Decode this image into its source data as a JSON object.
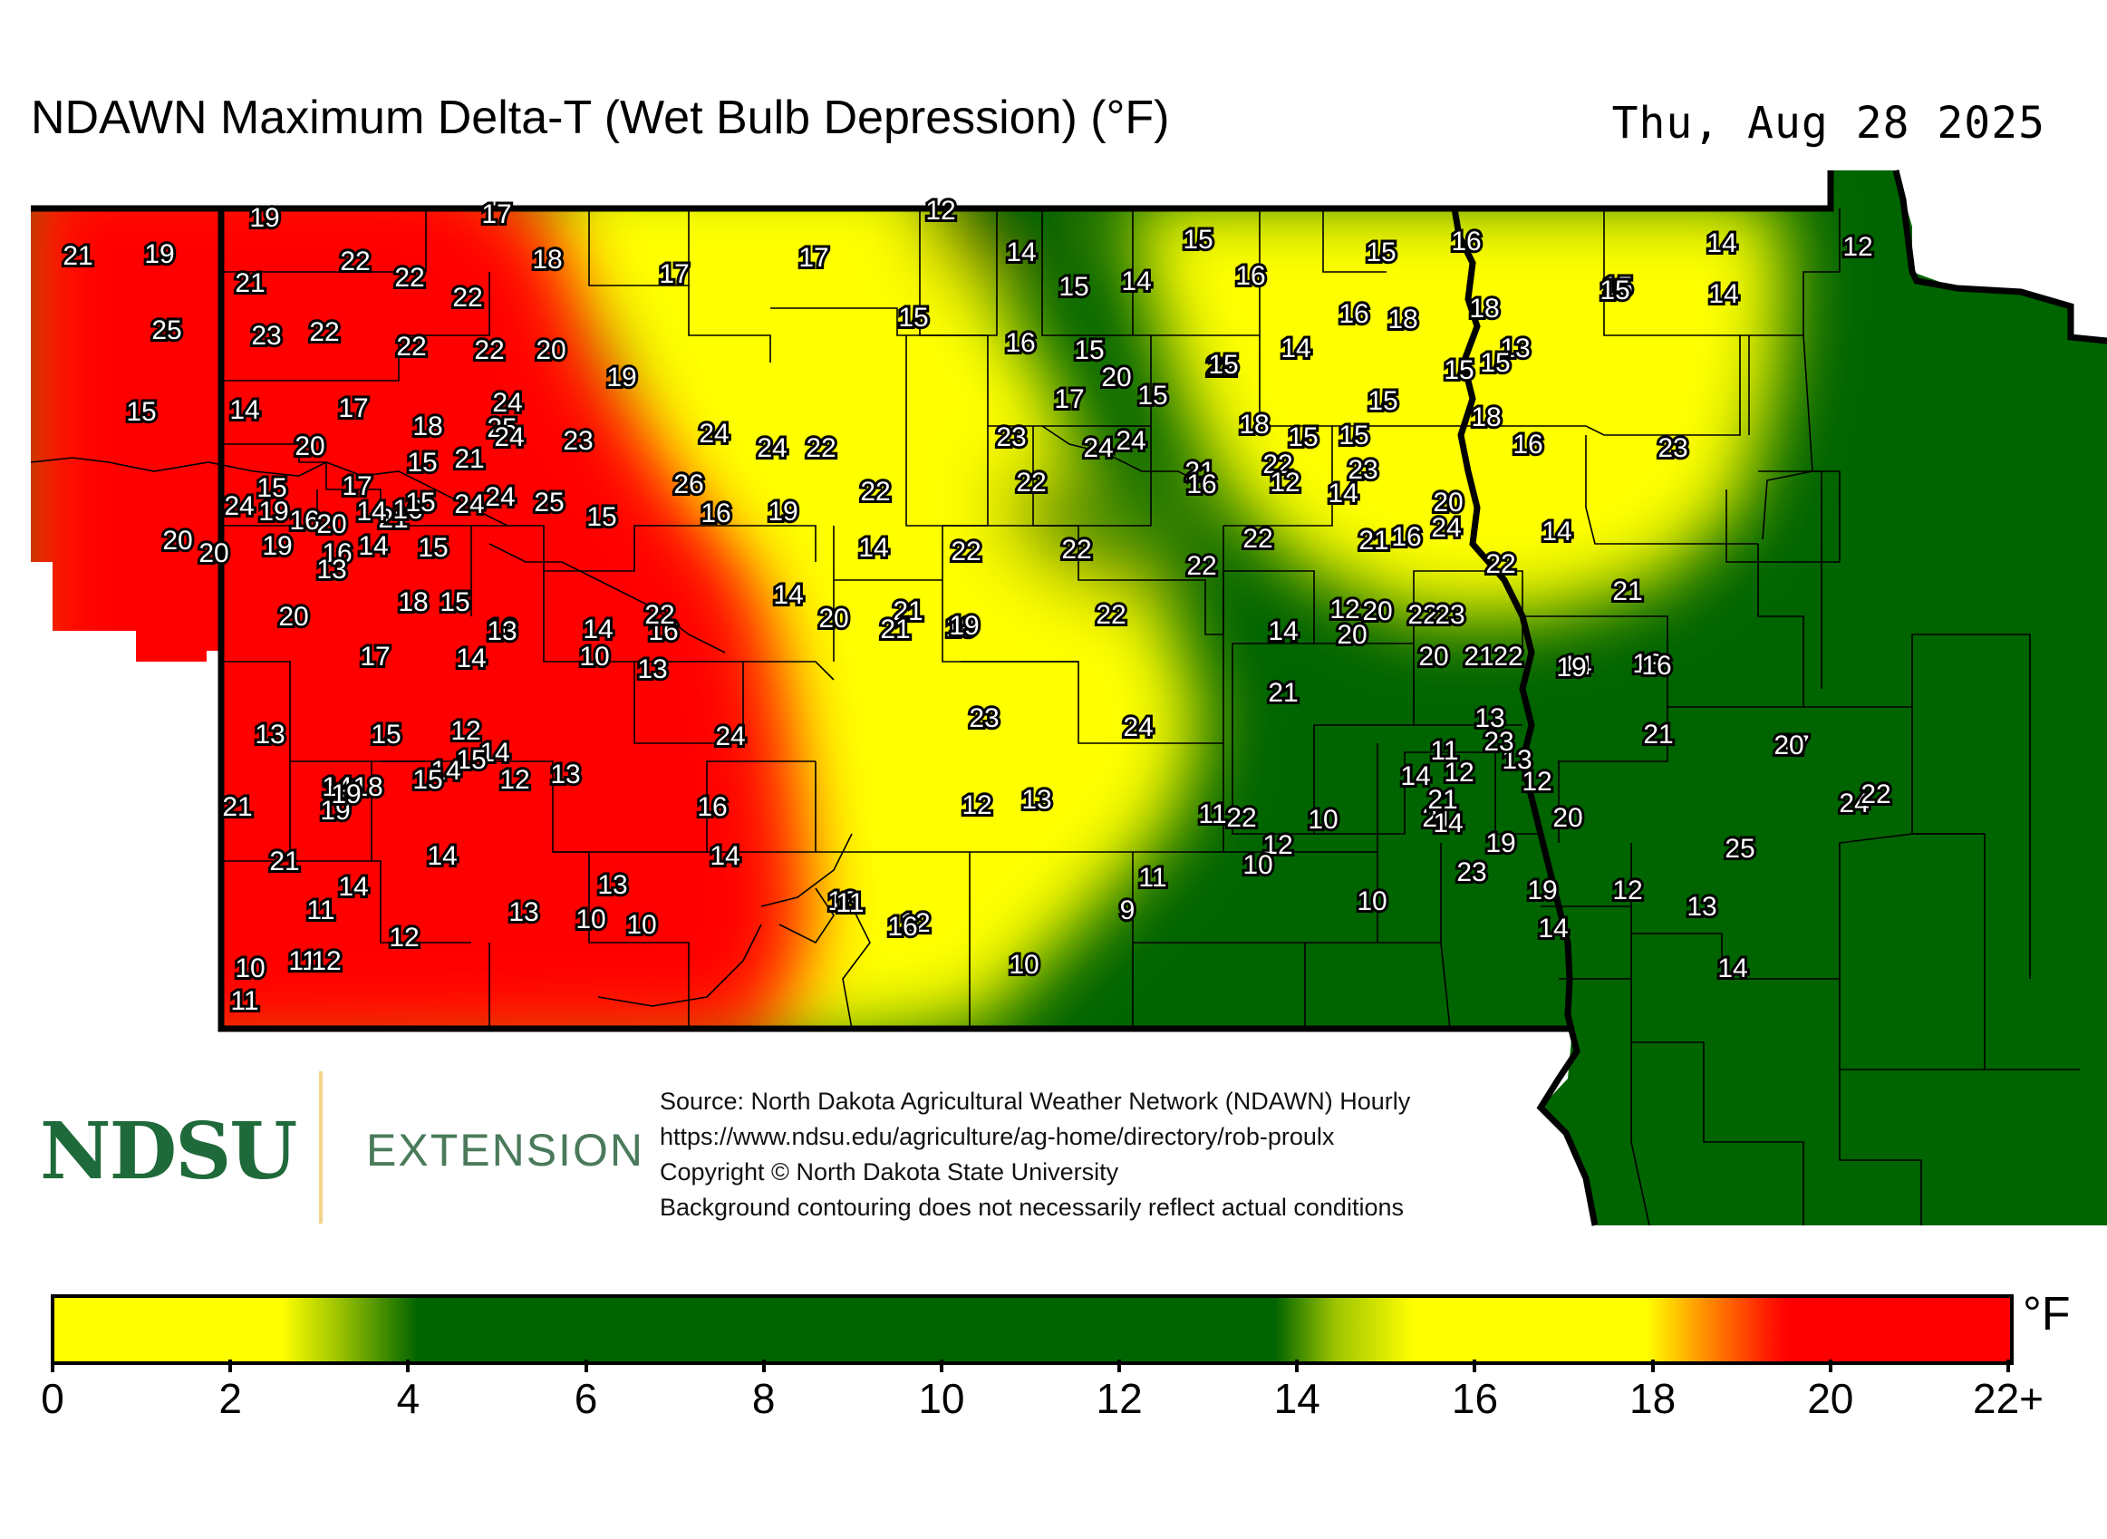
{
  "header": {
    "title": "NDAWN Maximum Delta-T (Wet Bulb Depression) (°F)",
    "date": "Thu, Aug 28 2025"
  },
  "logo": {
    "brand": "NDSU",
    "unit": "EXTENSION"
  },
  "source": {
    "line1": "Source: North Dakota Agricultural Weather Network (NDAWN) Hourly",
    "line2": "https://www.ndsu.edu/agriculture/ag-home/directory/rob-proulx",
    "line3": "Copyright © North Dakota State University",
    "line4": "Background contouring does not necessarily reflect actual conditions"
  },
  "legend": {
    "unit": "°F",
    "ticks": [
      "0",
      "2",
      "4",
      "6",
      "8",
      "10",
      "12",
      "14",
      "16",
      "18",
      "20",
      "22+"
    ],
    "colors": {
      "yellow": "#ffff00",
      "green": "#006400",
      "orange": "#ff8c00",
      "red": "#ff0000"
    }
  },
  "stations": [
    "21",
    "19",
    "19",
    "17",
    "12",
    "21",
    "22",
    "22",
    "22",
    "18",
    "17",
    "17",
    "14",
    "15",
    "15",
    "14",
    "16",
    "15",
    "16",
    "15",
    "14",
    "12",
    "25",
    "23",
    "22",
    "22",
    "22",
    "20",
    "15",
    "16",
    "15",
    "14",
    "16",
    "18",
    "18",
    "15",
    "14",
    "19",
    "20",
    "22",
    "15",
    "13",
    "15",
    "15",
    "14",
    "17",
    "18",
    "25",
    "24",
    "21",
    "23",
    "24",
    "24",
    "22",
    "17",
    "15",
    "18",
    "15",
    "15",
    "15",
    "18",
    "16",
    "23",
    "20",
    "15",
    "16",
    "17",
    "15",
    "21",
    "26",
    "24",
    "23",
    "24",
    "21",
    "22",
    "23",
    "24",
    "19",
    "20",
    "14",
    "16",
    "15",
    "24",
    "24",
    "25",
    "22",
    "24",
    "24",
    "20",
    "20",
    "19",
    "16",
    "14",
    "13",
    "15",
    "15",
    "16",
    "19",
    "14",
    "22",
    "22",
    "22",
    "22",
    "21",
    "16",
    "14",
    "15",
    "12",
    "16",
    "14",
    "22",
    "20",
    "20",
    "18",
    "15",
    "16",
    "14",
    "16",
    "22",
    "20",
    "21",
    "18",
    "22",
    "14",
    "12",
    "22",
    "22",
    "21",
    "17",
    "14",
    "13",
    "13",
    "14",
    "22",
    "21",
    "19",
    "20",
    "20",
    "23",
    "14",
    "13",
    "13",
    "14",
    "15",
    "12",
    "10",
    "24",
    "23",
    "24",
    "21",
    "20",
    "21",
    "19",
    "16",
    "17",
    "18",
    "16",
    "14",
    "15",
    "14",
    "14",
    "13",
    "12",
    "13",
    "12",
    "11",
    "23",
    "21",
    "20",
    "19",
    "21",
    "19",
    "15",
    "12",
    "16",
    "13",
    "12",
    "12",
    "11",
    "10",
    "22",
    "21",
    "20",
    "14",
    "19",
    "21",
    "25",
    "24",
    "22",
    "21",
    "14",
    "14",
    "13",
    "13",
    "14",
    "13",
    "12",
    "11",
    "10",
    "23",
    "19",
    "14",
    "12",
    "13",
    "14",
    "11",
    "11",
    "13",
    "10",
    "10",
    "10",
    "9",
    "10",
    "10",
    "11",
    "12",
    "12",
    "11",
    "16"
  ]
}
